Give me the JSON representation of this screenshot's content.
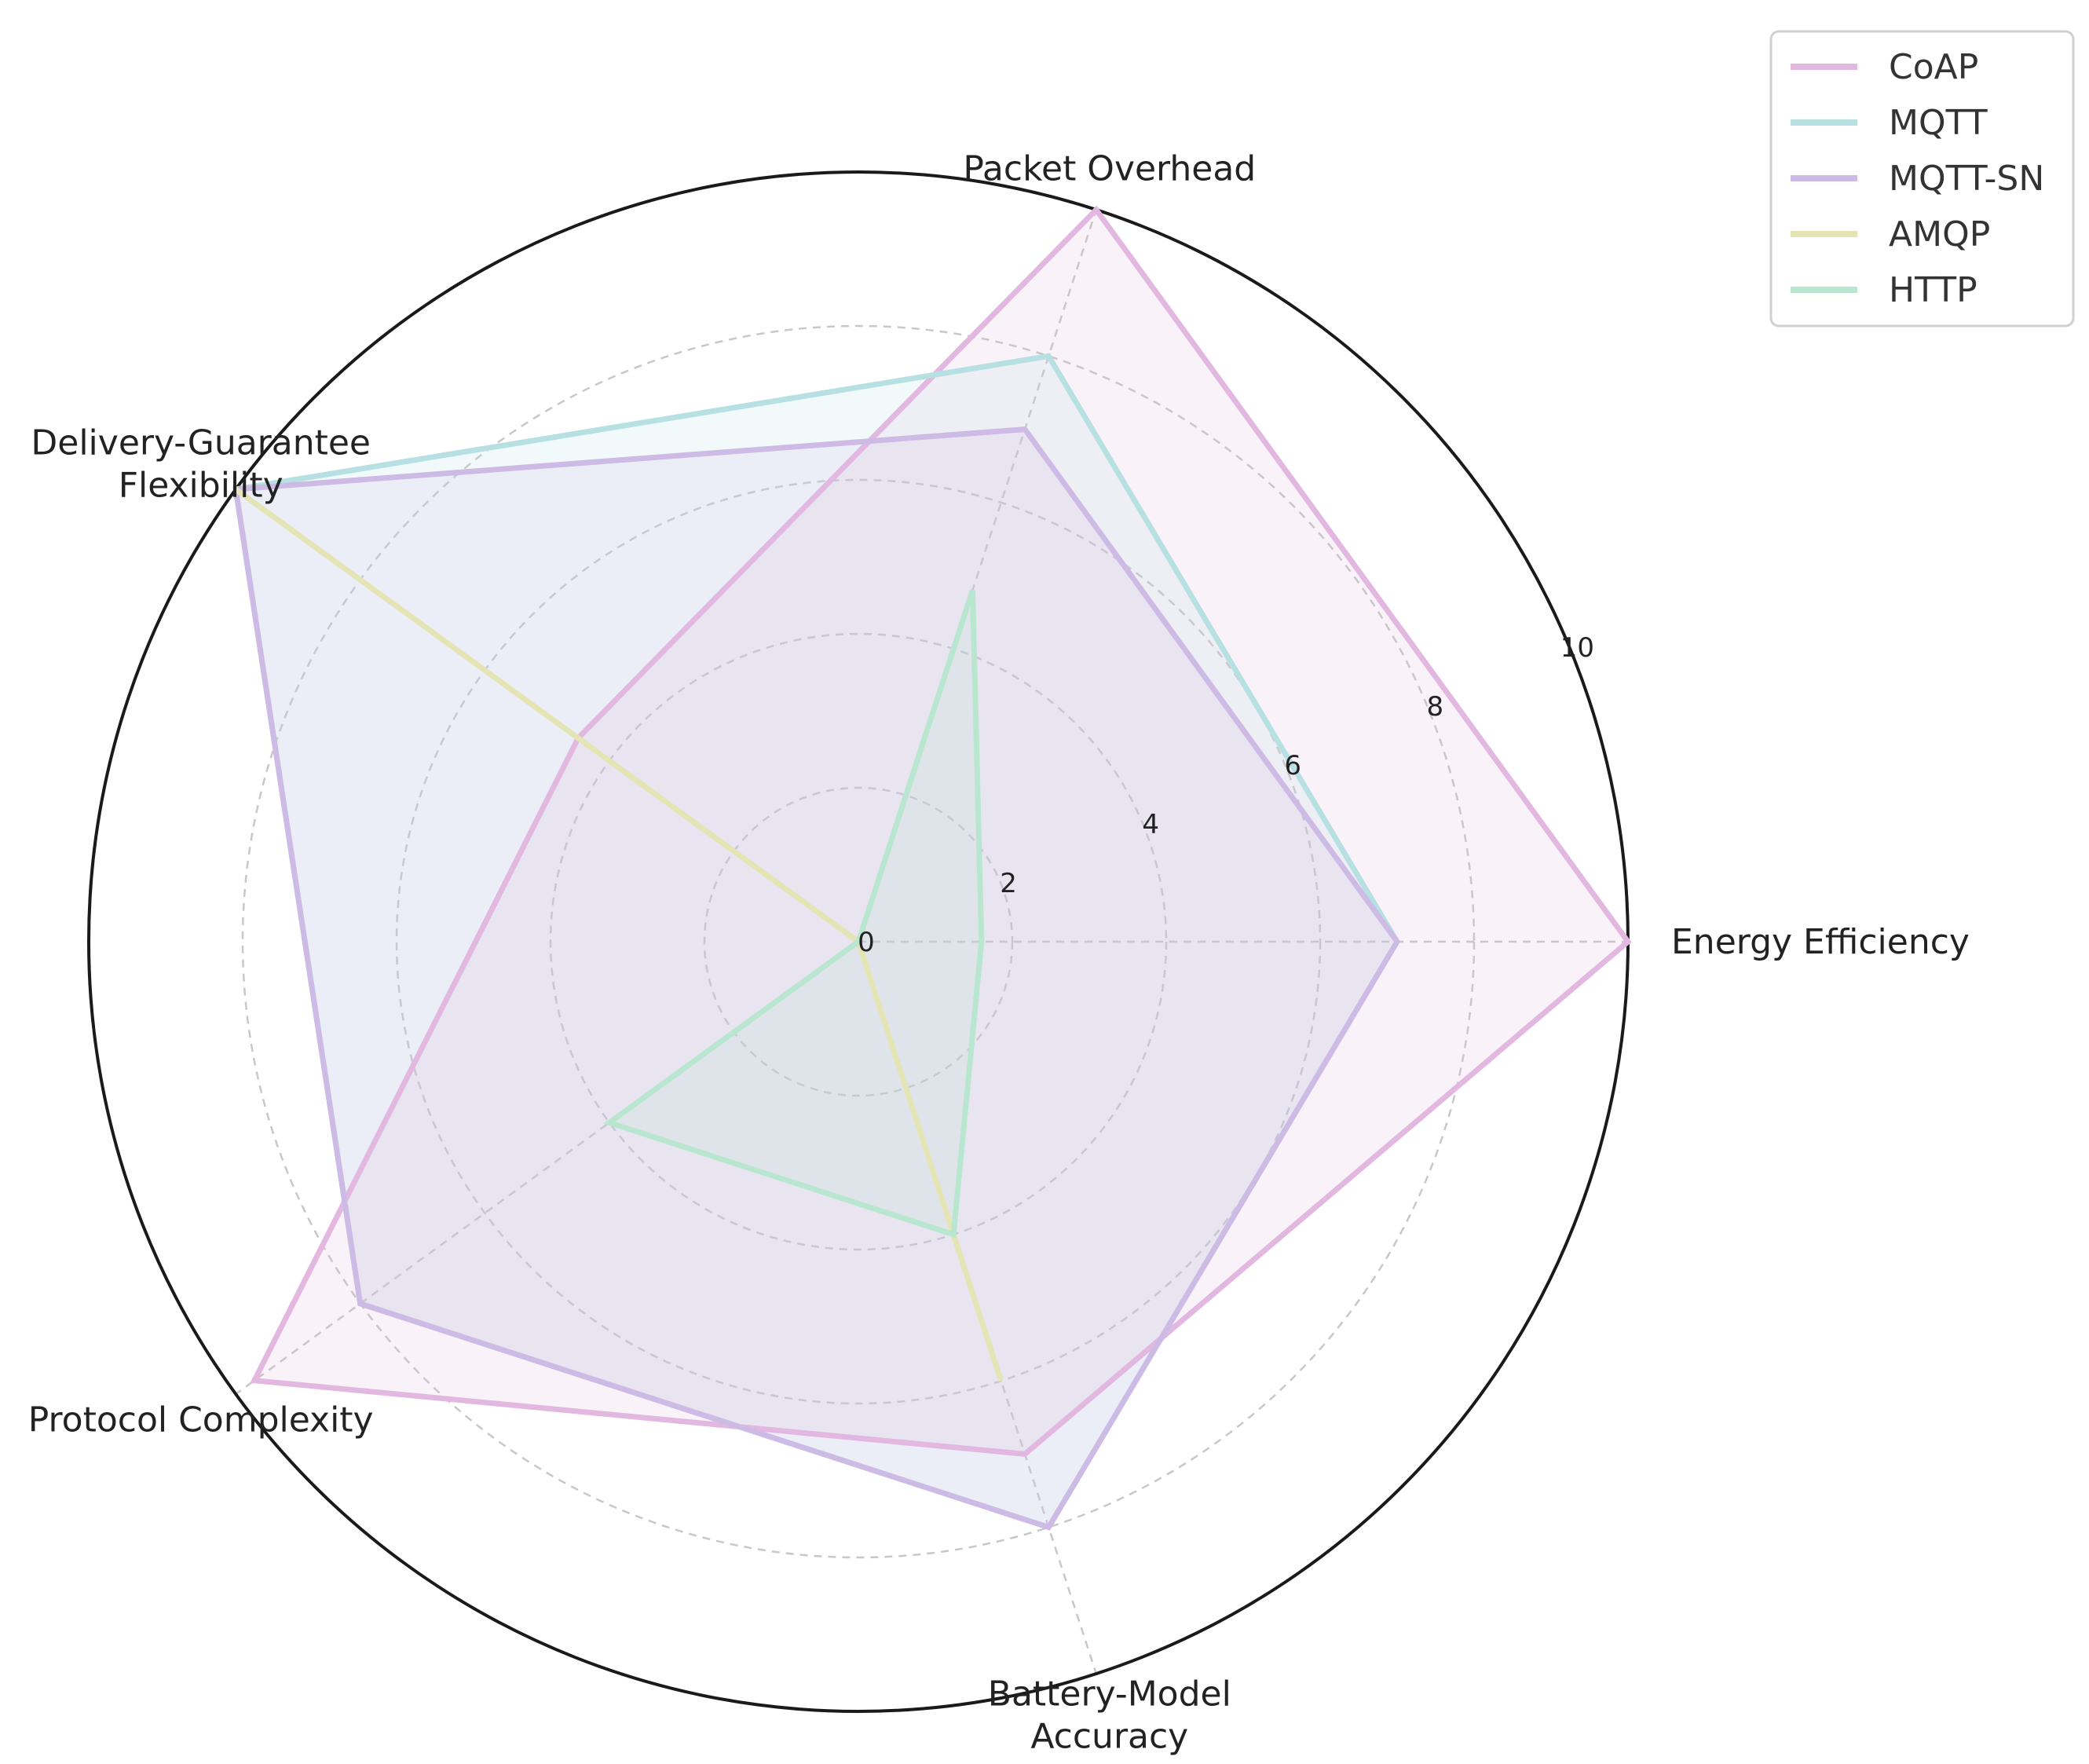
{
  "chart_data": {
    "type": "radar",
    "title": "",
    "axes": [
      "Energy Efficiency",
      "Packet Overhead",
      "Delivery-Guarantee\nFlexibility",
      "Protocol Complexity",
      "Battery-Model\nAccuracy"
    ],
    "radial_ticks": [
      "0",
      "2",
      "4",
      "6",
      "8",
      "10"
    ],
    "rlim": [
      0,
      10
    ],
    "grid": true,
    "legend_position": "top-right",
    "series": [
      {
        "name": "CoAP",
        "color": "#e2b7e0",
        "values": [
          10,
          10,
          4.5,
          9.7,
          7
        ]
      },
      {
        "name": "MQTT",
        "color": "#b6e0e2",
        "values": [
          7,
          8,
          10,
          8,
          8
        ]
      },
      {
        "name": "MQTT-SN",
        "color": "#cdbbe6",
        "values": [
          7,
          7,
          10,
          8,
          8
        ]
      },
      {
        "name": "AMQP",
        "color": "#e4e4b4",
        "values": [
          0,
          0,
          10,
          0,
          6
        ]
      },
      {
        "name": "HTTP",
        "color": "#b9e6cf",
        "values": [
          1.6,
          4.8,
          0,
          4,
          4
        ]
      }
    ]
  }
}
